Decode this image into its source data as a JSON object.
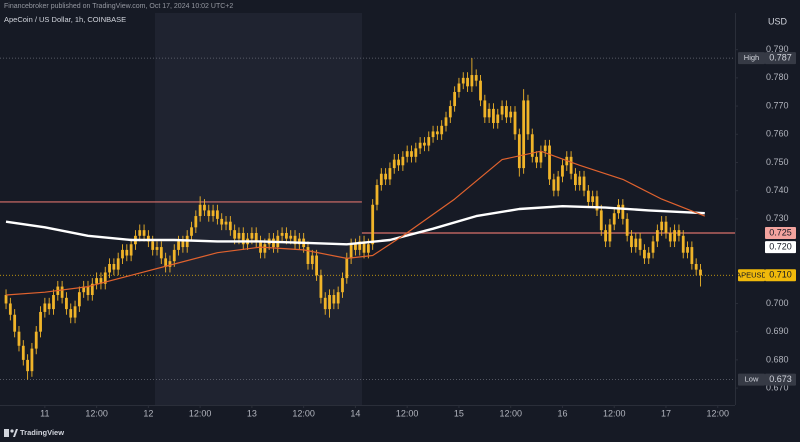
{
  "chart_data": {
    "type": "candlestick",
    "publisher_note": "Financebroker published on TradingView.com, Oct 17, 2024 10:02 UTC+2",
    "title": "ApeCoin / US Dollar, 1h, COINBASE",
    "currency": "USD",
    "brand": "TradingView",
    "color": "#f0b429",
    "x": [
      -9,
      -8,
      -7,
      -6,
      -5,
      -4,
      -3,
      -2,
      -1,
      0,
      1,
      2,
      3,
      4,
      5,
      6,
      7,
      8,
      9,
      10,
      11,
      12,
      13,
      14,
      15,
      16,
      17,
      18,
      19,
      20,
      21,
      22,
      23,
      24,
      25,
      26,
      27,
      28,
      29,
      30,
      31,
      32,
      33,
      34,
      35,
      36,
      37,
      38,
      39,
      40,
      41,
      42,
      43,
      44,
      45,
      46,
      47,
      48,
      49,
      50,
      51,
      52,
      53,
      54,
      55,
      56,
      57,
      58,
      59,
      60,
      61,
      62,
      63,
      64,
      65,
      66,
      67,
      68,
      69,
      70,
      71,
      72,
      73,
      74,
      75,
      76,
      77,
      78,
      79,
      80,
      81,
      82,
      83,
      84,
      85,
      86,
      87,
      88,
      89,
      90,
      91,
      92,
      93,
      94,
      95,
      96,
      97,
      98,
      99,
      100,
      101,
      102,
      103,
      104,
      105,
      106,
      107,
      108,
      109,
      110,
      111,
      112,
      113,
      114,
      115,
      116,
      117,
      118,
      119,
      120,
      121,
      122,
      123,
      124,
      125,
      126,
      127,
      128,
      129,
      130,
      131,
      132,
      133,
      134,
      135,
      136,
      137,
      138,
      139,
      140,
      141,
      142,
      143,
      144,
      145,
      146,
      147,
      148,
      149,
      150,
      151,
      152
    ],
    "open": [
      0.703,
      0.7,
      0.696,
      0.69,
      0.685,
      0.68,
      0.676,
      0.684,
      0.69,
      0.697,
      0.7,
      0.698,
      0.703,
      0.706,
      0.702,
      0.698,
      0.695,
      0.699,
      0.704,
      0.706,
      0.703,
      0.707,
      0.709,
      0.707,
      0.711,
      0.714,
      0.712,
      0.716,
      0.719,
      0.717,
      0.721,
      0.724,
      0.726,
      0.724,
      0.722,
      0.719,
      0.72,
      0.716,
      0.713,
      0.715,
      0.719,
      0.722,
      0.72,
      0.724,
      0.727,
      0.731,
      0.735,
      0.733,
      0.731,
      0.733,
      0.73,
      0.728,
      0.729,
      0.726,
      0.723,
      0.725,
      0.721,
      0.723,
      0.725,
      0.722,
      0.718,
      0.721,
      0.723,
      0.72,
      0.724,
      0.725,
      0.723,
      0.724,
      0.721,
      0.723,
      0.72,
      0.714,
      0.717,
      0.71,
      0.702,
      0.698,
      0.703,
      0.7,
      0.704,
      0.709,
      0.716,
      0.721,
      0.719,
      0.722,
      0.718,
      0.721,
      0.735,
      0.742,
      0.746,
      0.744,
      0.748,
      0.751,
      0.749,
      0.752,
      0.754,
      0.752,
      0.755,
      0.757,
      0.756,
      0.759,
      0.761,
      0.76,
      0.763,
      0.766,
      0.77,
      0.775,
      0.778,
      0.78,
      0.777,
      0.781,
      0.779,
      0.772,
      0.766,
      0.769,
      0.764,
      0.767,
      0.77,
      0.766,
      0.768,
      0.76,
      0.748,
      0.772,
      0.76,
      0.752,
      0.75,
      0.754,
      0.756,
      0.744,
      0.74,
      0.745,
      0.749,
      0.752,
      0.746,
      0.742,
      0.745,
      0.74,
      0.736,
      0.738,
      0.733,
      0.726,
      0.722,
      0.728,
      0.732,
      0.735,
      0.73,
      0.724,
      0.72,
      0.723,
      0.719,
      0.716,
      0.718,
      0.722,
      0.726,
      0.729,
      0.725,
      0.722,
      0.726,
      0.724,
      0.718,
      0.72,
      0.714,
      0.712
    ],
    "high": [
      0.705,
      0.702,
      0.698,
      0.692,
      0.687,
      0.682,
      0.686,
      0.692,
      0.699,
      0.702,
      0.702,
      0.705,
      0.708,
      0.708,
      0.704,
      0.7,
      0.701,
      0.706,
      0.708,
      0.708,
      0.709,
      0.711,
      0.711,
      0.713,
      0.716,
      0.716,
      0.718,
      0.721,
      0.721,
      0.723,
      0.726,
      0.728,
      0.728,
      0.726,
      0.724,
      0.722,
      0.722,
      0.718,
      0.717,
      0.721,
      0.724,
      0.724,
      0.726,
      0.729,
      0.733,
      0.738,
      0.737,
      0.735,
      0.735,
      0.735,
      0.732,
      0.731,
      0.731,
      0.728,
      0.727,
      0.727,
      0.725,
      0.727,
      0.727,
      0.724,
      0.723,
      0.725,
      0.725,
      0.726,
      0.727,
      0.727,
      0.726,
      0.726,
      0.725,
      0.725,
      0.722,
      0.719,
      0.719,
      0.712,
      0.704,
      0.705,
      0.705,
      0.706,
      0.711,
      0.718,
      0.723,
      0.723,
      0.724,
      0.724,
      0.723,
      0.737,
      0.744,
      0.748,
      0.748,
      0.75,
      0.753,
      0.753,
      0.754,
      0.756,
      0.756,
      0.757,
      0.759,
      0.759,
      0.761,
      0.763,
      0.763,
      0.765,
      0.768,
      0.772,
      0.777,
      0.78,
      0.782,
      0.782,
      0.787,
      0.783,
      0.781,
      0.774,
      0.771,
      0.771,
      0.769,
      0.772,
      0.772,
      0.77,
      0.77,
      0.762,
      0.776,
      0.774,
      0.762,
      0.754,
      0.756,
      0.758,
      0.758,
      0.746,
      0.747,
      0.751,
      0.754,
      0.754,
      0.748,
      0.747,
      0.747,
      0.742,
      0.74,
      0.74,
      0.735,
      0.728,
      0.73,
      0.734,
      0.737,
      0.737,
      0.732,
      0.726,
      0.725,
      0.725,
      0.721,
      0.72,
      0.724,
      0.728,
      0.731,
      0.731,
      0.727,
      0.728,
      0.728,
      0.726,
      0.722,
      0.722,
      0.716,
      0.714
    ],
    "low": [
      0.698,
      0.694,
      0.688,
      0.683,
      0.678,
      0.673,
      0.674,
      0.682,
      0.688,
      0.695,
      0.696,
      0.696,
      0.701,
      0.7,
      0.696,
      0.693,
      0.693,
      0.697,
      0.702,
      0.701,
      0.701,
      0.705,
      0.705,
      0.705,
      0.709,
      0.71,
      0.71,
      0.714,
      0.715,
      0.715,
      0.719,
      0.722,
      0.722,
      0.72,
      0.717,
      0.717,
      0.714,
      0.711,
      0.711,
      0.713,
      0.717,
      0.718,
      0.718,
      0.722,
      0.725,
      0.729,
      0.731,
      0.729,
      0.729,
      0.728,
      0.726,
      0.726,
      0.724,
      0.721,
      0.721,
      0.719,
      0.719,
      0.721,
      0.72,
      0.716,
      0.716,
      0.719,
      0.718,
      0.718,
      0.722,
      0.721,
      0.721,
      0.719,
      0.719,
      0.718,
      0.712,
      0.712,
      0.708,
      0.7,
      0.696,
      0.695,
      0.698,
      0.698,
      0.702,
      0.707,
      0.714,
      0.717,
      0.717,
      0.716,
      0.716,
      0.719,
      0.733,
      0.74,
      0.742,
      0.742,
      0.746,
      0.747,
      0.747,
      0.75,
      0.75,
      0.75,
      0.753,
      0.754,
      0.754,
      0.757,
      0.758,
      0.758,
      0.761,
      0.764,
      0.768,
      0.773,
      0.776,
      0.775,
      0.775,
      0.777,
      0.77,
      0.764,
      0.764,
      0.762,
      0.762,
      0.765,
      0.764,
      0.764,
      0.758,
      0.745,
      0.746,
      0.758,
      0.75,
      0.748,
      0.748,
      0.752,
      0.742,
      0.738,
      0.738,
      0.743,
      0.747,
      0.744,
      0.74,
      0.74,
      0.738,
      0.734,
      0.734,
      0.731,
      0.724,
      0.72,
      0.72,
      0.726,
      0.73,
      0.728,
      0.722,
      0.718,
      0.718,
      0.717,
      0.714,
      0.714,
      0.716,
      0.72,
      0.724,
      0.723,
      0.72,
      0.72,
      0.722,
      0.716,
      0.716,
      0.712,
      0.71,
      0.706
    ],
    "close": [
      0.7,
      0.696,
      0.69,
      0.685,
      0.68,
      0.676,
      0.684,
      0.69,
      0.697,
      0.7,
      0.698,
      0.703,
      0.706,
      0.702,
      0.698,
      0.695,
      0.699,
      0.704,
      0.706,
      0.703,
      0.707,
      0.709,
      0.707,
      0.711,
      0.714,
      0.712,
      0.716,
      0.719,
      0.717,
      0.721,
      0.724,
      0.726,
      0.724,
      0.722,
      0.719,
      0.72,
      0.716,
      0.713,
      0.715,
      0.719,
      0.722,
      0.72,
      0.724,
      0.727,
      0.731,
      0.735,
      0.733,
      0.731,
      0.733,
      0.73,
      0.728,
      0.729,
      0.726,
      0.723,
      0.725,
      0.721,
      0.723,
      0.725,
      0.722,
      0.718,
      0.721,
      0.723,
      0.72,
      0.724,
      0.725,
      0.723,
      0.724,
      0.721,
      0.723,
      0.72,
      0.714,
      0.717,
      0.71,
      0.702,
      0.698,
      0.703,
      0.7,
      0.704,
      0.709,
      0.716,
      0.721,
      0.719,
      0.722,
      0.718,
      0.721,
      0.735,
      0.742,
      0.746,
      0.744,
      0.748,
      0.751,
      0.749,
      0.752,
      0.754,
      0.752,
      0.755,
      0.757,
      0.756,
      0.759,
      0.761,
      0.76,
      0.763,
      0.766,
      0.77,
      0.775,
      0.778,
      0.78,
      0.777,
      0.781,
      0.779,
      0.772,
      0.766,
      0.769,
      0.764,
      0.767,
      0.77,
      0.766,
      0.768,
      0.76,
      0.748,
      0.772,
      0.76,
      0.752,
      0.75,
      0.754,
      0.756,
      0.744,
      0.74,
      0.745,
      0.749,
      0.752,
      0.746,
      0.742,
      0.745,
      0.74,
      0.736,
      0.738,
      0.733,
      0.726,
      0.722,
      0.728,
      0.732,
      0.735,
      0.73,
      0.724,
      0.72,
      0.723,
      0.719,
      0.716,
      0.718,
      0.722,
      0.726,
      0.729,
      0.725,
      0.722,
      0.726,
      0.724,
      0.718,
      0.72,
      0.714,
      0.712,
      0.71
    ],
    "xlim": [
      -10.4,
      160
    ],
    "xticks": [
      {
        "value": 0,
        "label": "11"
      },
      {
        "value": 12,
        "label": "12:00"
      },
      {
        "value": 24,
        "label": "12"
      },
      {
        "value": 36,
        "label": "12:00"
      },
      {
        "value": 48,
        "label": "13"
      },
      {
        "value": 60,
        "label": "12:00"
      },
      {
        "value": 72,
        "label": "14"
      },
      {
        "value": 84,
        "label": "12:00"
      },
      {
        "value": 96,
        "label": "15"
      },
      {
        "value": 108,
        "label": "12:00"
      },
      {
        "value": 120,
        "label": "16"
      },
      {
        "value": 132,
        "label": "12:00"
      },
      {
        "value": 144,
        "label": "17"
      },
      {
        "value": 156,
        "label": "12:00"
      }
    ],
    "ylim": [
      0.664,
      0.803
    ],
    "yticks": [
      {
        "value": 0.79,
        "label": "0.790"
      },
      {
        "value": 0.78,
        "label": "0.780"
      },
      {
        "value": 0.77,
        "label": "0.770"
      },
      {
        "value": 0.76,
        "label": "0.760"
      },
      {
        "value": 0.75,
        "label": "0.750"
      },
      {
        "value": 0.74,
        "label": "0.740"
      },
      {
        "value": 0.73,
        "label": "0.730"
      },
      {
        "value": 0.7,
        "label": "0.700"
      },
      {
        "value": 0.69,
        "label": "0.690"
      },
      {
        "value": 0.68,
        "label": "0.680"
      },
      {
        "value": 0.67,
        "label": "0.670"
      }
    ],
    "overlays": [
      {
        "color": "#ffffff",
        "x": [
          -9,
          0,
          10,
          20,
          30,
          40,
          50,
          60,
          70,
          80,
          90,
          100,
          110,
          120,
          130,
          140,
          153
        ],
        "values": [
          0.729,
          0.727,
          0.724,
          0.7225,
          0.7225,
          0.722,
          0.722,
          0.7215,
          0.721,
          0.7225,
          0.7265,
          0.731,
          0.7335,
          0.7345,
          0.734,
          0.733,
          0.732
        ]
      },
      {
        "color": "#e0622e",
        "x": [
          -9,
          0,
          10,
          20,
          30,
          40,
          50,
          60,
          70,
          76,
          83,
          95,
          106,
          115,
          124,
          134,
          143,
          153
        ],
        "values": [
          0.703,
          0.704,
          0.706,
          0.71,
          0.714,
          0.718,
          0.72,
          0.719,
          0.716,
          0.717,
          0.724,
          0.737,
          0.751,
          0.754,
          0.749,
          0.744,
          0.737,
          0.731
        ]
      }
    ],
    "levels": [
      {
        "value": 0.736,
        "x": [
          -10.4,
          73.5
        ],
        "color": "#d9706a"
      },
      {
        "value": 0.725,
        "x": [
          73.5,
          160
        ],
        "color": "#d9706a"
      }
    ],
    "price_labels": [
      {
        "name": "High",
        "value": 0.787,
        "label": "0.787",
        "color": "#363a45",
        "text_color": "#d1d4dc",
        "guide": "#6a6d78"
      },
      {
        "value": 0.725,
        "label": "0.725",
        "color": "#f3a39e",
        "text_color": "#131722"
      },
      {
        "value": 0.72,
        "label": "0.720",
        "color": "#ffffff",
        "text_color": "#131722"
      },
      {
        "name": "APEUSD",
        "value": 0.71,
        "label": "0.710",
        "color": "#f0b90b",
        "text_color": "#131722",
        "guide": "#f0b90b"
      },
      {
        "name": "Low",
        "value": 0.673,
        "label": "0.673",
        "color": "#363a45",
        "text_color": "#d1d4dc",
        "guide": "#6a6d78"
      }
    ]
  }
}
